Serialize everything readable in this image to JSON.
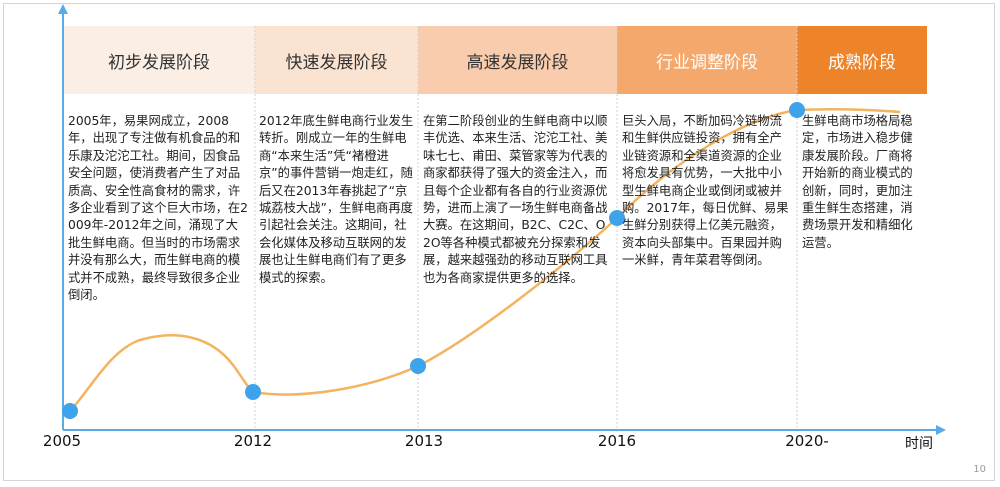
{
  "colors": {
    "stage_1": "#fbeee4",
    "stage_2": "#fbe3d2",
    "stage_3": "#f8ccac",
    "stage_4": "#f5a86c",
    "stage_5": "#ee8429",
    "axis": "#5aaae6",
    "curve": "#f3b35f",
    "marker": "#3fa3ec"
  },
  "stages": [
    {
      "title": "初步发展阶段",
      "text": "2005年，易果网成立，2008年，出现了专注做有机食品的和乐康及沱沱工社。期间，因食品安全问题，使消费者产生了对品质高、安全性高食材的需求，许多企业看到了这个巨大市场，在2009年-2012年之间，涌现了大批生鲜电商。但当时的市场需求并没有那么大，而生鲜电商的模式并不成熟，最终导致很多企业倒闭。"
    },
    {
      "title": "快速发展阶段",
      "text": "2012年底生鲜电商行业发生转折。刚成立一年的生鲜电商“本来生活”凭“褚橙进京”的事件营销一炮走红，随后又在2013年春挑起了“京城荔枝大战”，生鲜电商再度引起社会关注。这期间，社会化媒体及移动互联网的发展也让生鲜电商们有了更多模式的探索。"
    },
    {
      "title": "高速发展阶段",
      "text": "在第二阶段创业的生鲜电商中以顺丰优选、本来生活、沱沱工社、美味七七、甫田、菜管家等为代表的商家都获得了强大的资金注入，而且每个企业都有各自的行业资源优势，进而上演了一场生鲜电商备战大赛。在这期间，B2C、C2C、O2O等各种模式都被充分探索和发展，越来越强劲的移动互联网工具也为各商家提供更多的选择。"
    },
    {
      "title": "行业调整阶段",
      "text": "巨头入局，不断加码冷链物流和生鲜供应链投资，拥有全产业链资源和全渠道资源的企业将愈发具有优势，一大批中小型生鲜电商企业或倒闭或被并购。2017年，每日优鲜、易果生鲜分别获得上亿美元融资，资本向头部集中。百果园并购一米鲜，青年菜君等倒闭。"
    },
    {
      "title": "成熟阶段",
      "text": "生鲜电商市场格局稳定，市场进入稳步健康发展阶段。厂商将开始新的商业模式的创新，同时，更加注重生鲜生态搭建，消费场景开发和精细化运营。"
    }
  ],
  "years": [
    "2005",
    "2012",
    "2013",
    "2016",
    "2020-"
  ],
  "axis_title": "时间",
  "page_number": "10"
}
